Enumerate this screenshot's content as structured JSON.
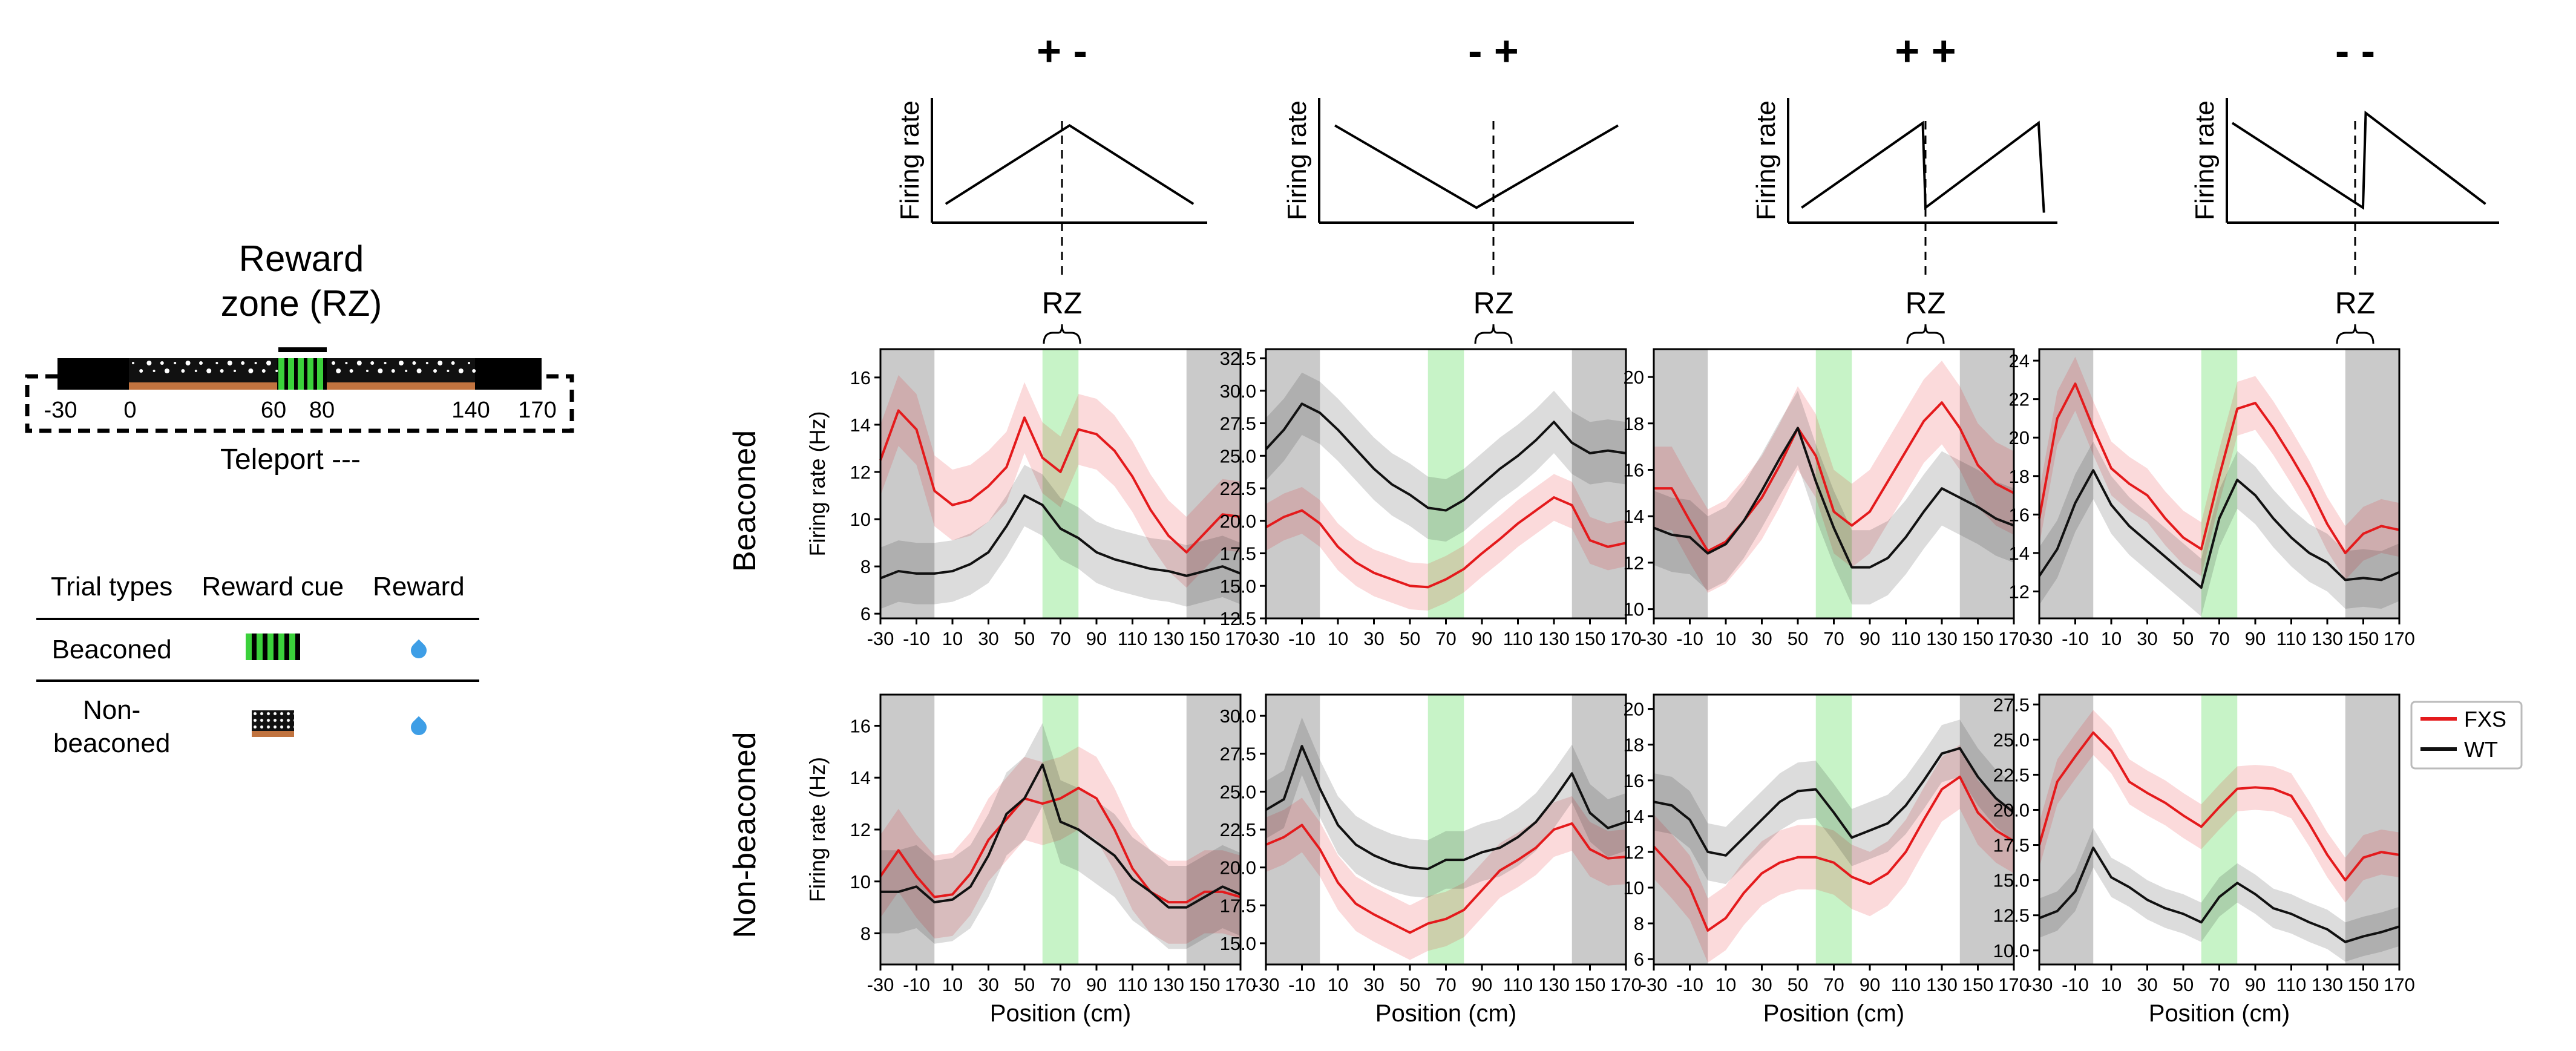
{
  "track_panel": {
    "title_line1": "Reward",
    "title_line2": "zone (RZ)",
    "track_labels": [
      "-30",
      "0",
      "60",
      "80",
      "140",
      "170"
    ],
    "teleport_label": "Teleport ---"
  },
  "trial_table": {
    "headers": [
      "Trial types",
      "Reward cue",
      "Reward"
    ],
    "rows": [
      {
        "type": "Beaconed",
        "cue_icon": "black-green-striped-cue",
        "reward_icon": "water-drop-icon"
      },
      {
        "type": "Non-\nbeaconed",
        "cue_icon": "black-white-dotted-cue",
        "reward_icon": "water-drop-icon"
      }
    ]
  },
  "row_labels": [
    "Beaconed",
    "Non-beaconed"
  ],
  "rz_label": "RZ",
  "schematics": [
    {
      "sign": "+ -",
      "ylabel": "Firing rate",
      "shape": "ramp-up-then-down"
    },
    {
      "sign": "- +",
      "ylabel": "Firing rate",
      "shape": "ramp-down-then-up"
    },
    {
      "sign": "+ +",
      "ylabel": "Firing rate",
      "shape": "ramp-up-reset-up"
    },
    {
      "sign": "- -",
      "ylabel": "Firing rate",
      "shape": "ramp-down-reset-down"
    }
  ],
  "chart_data": {
    "type": "line",
    "xlabel": "Position (cm)",
    "ylabel": "Firing rate (Hz)",
    "xlim": [
      -30,
      170
    ],
    "xticks": [
      -30,
      -10,
      10,
      30,
      50,
      70,
      90,
      110,
      130,
      150,
      170
    ],
    "shaded_regions": [
      {
        "from": -30,
        "to": 0,
        "color": "#b8b8b8"
      },
      {
        "from": 60,
        "to": 80,
        "color": "#b9f0b9"
      },
      {
        "from": 140,
        "to": 170,
        "color": "#b8b8b8"
      }
    ],
    "legend": {
      "location": "top-right",
      "panel": "non-beaconed, - -"
    },
    "series_colors": {
      "FXS": "#e41a1c",
      "WT": "#111111"
    },
    "x": [
      -30,
      -20,
      -10,
      0,
      10,
      20,
      30,
      40,
      50,
      60,
      70,
      80,
      90,
      100,
      110,
      120,
      130,
      140,
      150,
      160,
      170
    ],
    "panels": [
      {
        "row": "Beaconed",
        "pattern": "+ -",
        "ylim": [
          5.8,
          17.2
        ],
        "yticks": [
          "6",
          "8",
          "10",
          "12",
          "14",
          "16"
        ],
        "series": [
          {
            "name": "FXS",
            "values": [
              12.5,
              14.6,
              13.8,
              11.2,
              10.6,
              10.8,
              11.4,
              12.2,
              14.3,
              12.6,
              12.0,
              13.8,
              13.6,
              12.9,
              11.8,
              10.4,
              9.3,
              8.6,
              9.4,
              10.2,
              10.1
            ],
            "band": 1.5
          },
          {
            "name": "WT",
            "values": [
              7.5,
              7.8,
              7.7,
              7.7,
              7.8,
              8.1,
              8.6,
              9.7,
              11.0,
              10.6,
              9.6,
              9.2,
              8.6,
              8.3,
              8.1,
              7.9,
              7.8,
              7.6,
              7.8,
              8.0,
              7.7
            ],
            "band": 1.3
          }
        ]
      },
      {
        "row": "Beaconed",
        "pattern": "- +",
        "ylim": [
          12.5,
          33.2
        ],
        "yticks": [
          "12.5",
          "15.0",
          "17.5",
          "20.0",
          "22.5",
          "25.0",
          "27.5",
          "30.0",
          "32.5"
        ],
        "series": [
          {
            "name": "FXS",
            "values": [
              19.5,
              20.3,
              20.8,
              19.8,
              18.0,
              16.8,
              16.0,
              15.5,
              15.0,
              14.9,
              15.5,
              16.3,
              17.5,
              18.6,
              19.8,
              20.8,
              21.8,
              21.2,
              18.5,
              18.0,
              18.3
            ],
            "band": 1.8
          },
          {
            "name": "WT",
            "values": [
              25.5,
              27.0,
              29.0,
              28.3,
              27.0,
              25.5,
              24.0,
              22.8,
              22.0,
              21.0,
              20.8,
              21.6,
              22.8,
              24.0,
              25.0,
              26.2,
              27.6,
              26.0,
              25.2,
              25.4,
              25.2
            ],
            "band": 2.4
          }
        ]
      },
      {
        "row": "Beaconed",
        "pattern": "+ +",
        "ylim": [
          9.6,
          21.2
        ],
        "yticks": [
          "10",
          "12",
          "14",
          "16",
          "18",
          "20"
        ],
        "series": [
          {
            "name": "FXS",
            "values": [
              15.2,
              15.2,
              13.8,
              12.5,
              12.9,
              13.8,
              14.8,
              16.2,
              17.8,
              16.6,
              14.2,
              13.6,
              14.2,
              15.5,
              16.8,
              18.1,
              18.9,
              17.8,
              16.2,
              15.4,
              15.0
            ],
            "band": 1.8
          },
          {
            "name": "WT",
            "values": [
              13.5,
              13.2,
              13.1,
              12.4,
              12.8,
              13.8,
              15.1,
              16.5,
              17.8,
              15.5,
              13.5,
              11.8,
              11.8,
              12.2,
              13.1,
              14.2,
              15.2,
              14.8,
              14.4,
              13.9,
              13.6
            ],
            "band": 1.6
          }
        ]
      },
      {
        "row": "Beaconed",
        "pattern": "- -",
        "ylim": [
          10.6,
          24.6
        ],
        "yticks": [
          "12",
          "14",
          "16",
          "18",
          "20",
          "22",
          "24"
        ],
        "series": [
          {
            "name": "FXS",
            "values": [
              15.8,
              21.0,
              22.8,
              20.5,
              18.4,
              17.6,
              17.0,
              15.8,
              14.8,
              14.2,
              18.0,
              21.5,
              21.8,
              20.5,
              19.0,
              17.4,
              15.5,
              14.0,
              15.0,
              15.4,
              15.2
            ],
            "band": 1.4
          },
          {
            "name": "WT",
            "values": [
              12.8,
              14.2,
              16.6,
              18.3,
              16.5,
              15.4,
              14.6,
              13.8,
              13.0,
              12.2,
              15.8,
              17.8,
              17.0,
              15.8,
              14.8,
              14.0,
              13.5,
              12.6,
              12.7,
              12.6,
              13.0
            ],
            "band": 1.5
          }
        ]
      },
      {
        "row": "Non-beaconed",
        "pattern": "+ -",
        "ylim": [
          6.8,
          17.2
        ],
        "yticks": [
          "8",
          "10",
          "12",
          "14",
          "16"
        ],
        "series": [
          {
            "name": "FXS",
            "values": [
              10.2,
              11.2,
              10.2,
              9.4,
              9.5,
              10.3,
              11.6,
              12.4,
              13.2,
              13.0,
              13.2,
              13.6,
              13.2,
              12.0,
              10.5,
              9.6,
              9.2,
              9.2,
              9.6,
              9.6,
              9.4
            ],
            "band": 1.6
          },
          {
            "name": "WT",
            "values": [
              9.6,
              9.6,
              9.8,
              9.2,
              9.3,
              9.8,
              11.0,
              12.6,
              13.2,
              14.5,
              12.3,
              12.0,
              11.5,
              11.0,
              10.1,
              9.6,
              9.0,
              9.0,
              9.4,
              9.8,
              9.5
            ],
            "band": 1.6
          }
        ]
      },
      {
        "row": "Non-beaconed",
        "pattern": "- +",
        "ylim": [
          13.6,
          31.4
        ],
        "yticks": [
          "15.0",
          "17.5",
          "20.0",
          "22.5",
          "25.0",
          "27.5",
          "30.0"
        ],
        "series": [
          {
            "name": "FXS",
            "values": [
              21.5,
              22.0,
              22.8,
              21.2,
              19.0,
              17.6,
              16.9,
              16.3,
              15.7,
              16.3,
              16.6,
              17.2,
              18.5,
              19.8,
              20.5,
              21.3,
              22.5,
              22.9,
              21.2,
              20.6,
              20.7
            ],
            "band": 1.8
          },
          {
            "name": "WT",
            "values": [
              23.8,
              24.5,
              28.0,
              25.2,
              22.8,
              21.5,
              20.8,
              20.3,
              20.0,
              19.9,
              20.5,
              20.5,
              21.0,
              21.3,
              22.0,
              23.0,
              24.5,
              26.2,
              23.6,
              22.6,
              23.0
            ],
            "band": 1.9
          }
        ]
      },
      {
        "row": "Non-beaconed",
        "pattern": "+ +",
        "ylim": [
          5.7,
          20.8
        ],
        "yticks": [
          "6",
          "8",
          "10",
          "12",
          "14",
          "16",
          "18",
          "20"
        ],
        "series": [
          {
            "name": "FXS",
            "values": [
              12.3,
              11.2,
              10.0,
              7.6,
              8.3,
              9.7,
              10.8,
              11.4,
              11.7,
              11.7,
              11.4,
              10.6,
              10.2,
              10.8,
              12.0,
              13.8,
              15.5,
              16.2,
              14.2,
              13.2,
              12.6
            ],
            "band": 1.8
          },
          {
            "name": "WT",
            "values": [
              14.8,
              14.6,
              13.8,
              12.0,
              11.8,
              12.8,
              13.8,
              14.8,
              15.4,
              15.5,
              14.2,
              12.8,
              13.2,
              13.6,
              14.6,
              16.0,
              17.5,
              17.8,
              16.2,
              15.0,
              14.2
            ],
            "band": 1.6
          }
        ]
      },
      {
        "row": "Non-beaconed",
        "pattern": "- -",
        "ylim": [
          9.0,
          28.2
        ],
        "yticks": [
          "10.0",
          "12.5",
          "15.0",
          "17.5",
          "20.0",
          "22.5",
          "25.0",
          "27.5"
        ],
        "series": [
          {
            "name": "FXS",
            "values": [
              17.5,
              22.0,
              23.8,
              25.5,
              24.2,
              22.0,
              21.2,
              20.5,
              19.6,
              18.8,
              20.2,
              21.5,
              21.6,
              21.5,
              21.0,
              19.0,
              16.8,
              15.0,
              16.6,
              17.0,
              16.8
            ],
            "band": 1.6
          },
          {
            "name": "WT",
            "values": [
              12.3,
              12.8,
              14.2,
              17.3,
              15.2,
              14.5,
              13.6,
              13.0,
              12.6,
              12.0,
              13.8,
              14.8,
              14.0,
              13.0,
              12.6,
              12.0,
              11.5,
              10.6,
              11.0,
              11.3,
              11.7
            ],
            "band": 1.4
          }
        ]
      }
    ]
  }
}
